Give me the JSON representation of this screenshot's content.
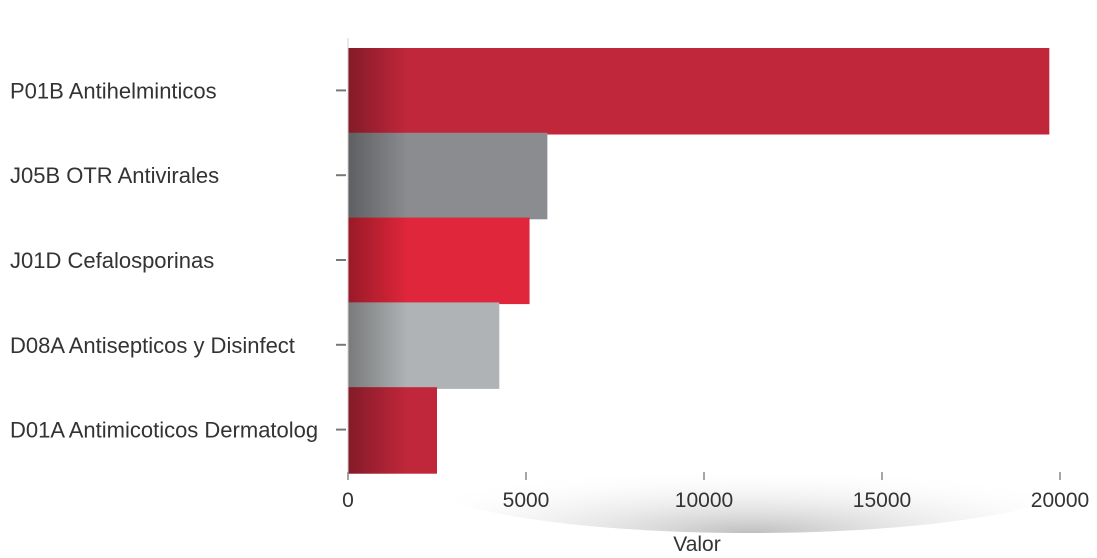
{
  "chart_data": {
    "type": "bar",
    "orientation": "horizontal",
    "categories": [
      "P01B Antihelminticos",
      "J05B OTR Antivirales",
      "J01D Cefalosporinas",
      "D08A Antisepticos y Disinfect",
      "D01A Antimicoticos Dermatolog"
    ],
    "values": [
      19700,
      5600,
      5100,
      4250,
      2500
    ],
    "bar_colors": [
      "#c1273b",
      "#8a8c90",
      "#e0263a",
      "#b0b3b5",
      "#c1273b"
    ],
    "xlabel": "Valor",
    "ylabel": "",
    "xlim": [
      0,
      20000
    ],
    "x_ticks": [
      "0",
      "5000",
      "10000",
      "15000",
      "20000"
    ],
    "grid": false,
    "legend": "none"
  }
}
